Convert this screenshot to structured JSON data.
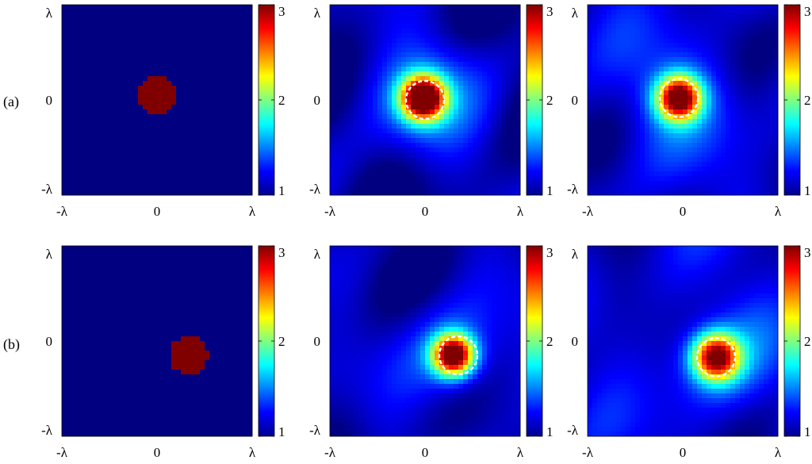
{
  "row_labels": [
    "(a)",
    "(b)"
  ],
  "chart_data": {
    "type": "heatmap",
    "layout": "2 rows x 3 columns",
    "colormap": "jet",
    "x_tick_labels": [
      "-λ",
      "0",
      "λ"
    ],
    "y_tick_labels": [
      "λ",
      "0",
      "-λ"
    ],
    "xlim": [
      -1,
      1
    ],
    "ylim": [
      -1,
      1
    ],
    "clim": [
      1,
      3
    ],
    "colorbar_ticks": [
      "1",
      "2",
      "3"
    ],
    "panels": [
      {
        "row": "(a)",
        "column": 1,
        "kind": "true",
        "background": 1.0,
        "disk_center": [
          0.0,
          0.04
        ],
        "disk_radius": 0.2,
        "disk_value": 3.1
      },
      {
        "row": "(a)",
        "column": 2,
        "kind": "reconstruction",
        "background": 1.05,
        "peak_center": [
          -0.02,
          0.02
        ],
        "peak_value": 3.2,
        "peak_width": 0.16,
        "halo_value": 0.45,
        "halo_width": 0.45,
        "dashed_circle": {
          "center": [
            0.0,
            0.0
          ],
          "radius": 0.2
        }
      },
      {
        "row": "(a)",
        "column": 3,
        "kind": "reconstruction",
        "background": 1.15,
        "peak_center": [
          -0.04,
          0.02
        ],
        "peak_value": 3.0,
        "peak_width": 0.16,
        "halo_value": 0.3,
        "halo_width": 0.4,
        "dashed_circle": {
          "center": [
            -0.04,
            0.02
          ],
          "radius": 0.2
        }
      },
      {
        "row": "(b)",
        "column": 1,
        "kind": "true",
        "background": 1.0,
        "disk_center": [
          0.33,
          -0.15
        ],
        "disk_radius": 0.2,
        "disk_value": 3.1
      },
      {
        "row": "(b)",
        "column": 2,
        "kind": "reconstruction",
        "background": 1.08,
        "peak_center": [
          0.3,
          -0.15
        ],
        "peak_value": 3.1,
        "peak_width": 0.15,
        "halo_value": 0.35,
        "halo_width": 0.4,
        "dashed_circle": {
          "center": [
            0.35,
            -0.15
          ],
          "radius": 0.2
        }
      },
      {
        "row": "(b)",
        "column": 3,
        "kind": "reconstruction",
        "background": 1.15,
        "peak_center": [
          0.35,
          -0.17
        ],
        "peak_value": 2.9,
        "peak_width": 0.17,
        "halo_value": 0.3,
        "halo_width": 0.42,
        "dashed_circle": {
          "center": [
            0.35,
            -0.17
          ],
          "radius": 0.2
        }
      }
    ]
  }
}
